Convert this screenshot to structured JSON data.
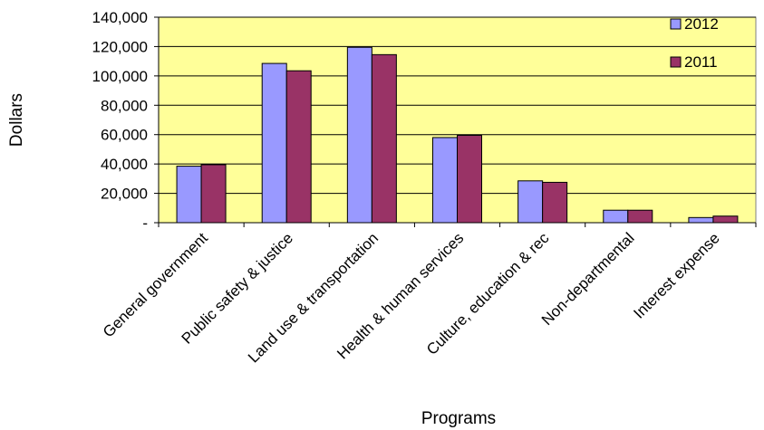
{
  "chart_data": {
    "type": "bar",
    "categories": [
      "General government",
      "Public safety & justice",
      "Land use & transportation",
      "Health & human services",
      "Culture, education & rec",
      "Non-departmental",
      "Interest expense"
    ],
    "series": [
      {
        "name": "2012",
        "color": "#9999ff",
        "values": [
          38500,
          108500,
          119500,
          58000,
          28500,
          8500,
          3500
        ]
      },
      {
        "name": "2011",
        "color": "#993366",
        "values": [
          39500,
          103500,
          114500,
          59500,
          27500,
          8500,
          4500
        ]
      }
    ],
    "xlabel": "Programs",
    "ylabel": "Dollars",
    "ylim": [
      0,
      140000
    ],
    "yticks": [
      0,
      20000,
      40000,
      60000,
      80000,
      100000,
      120000,
      140000
    ],
    "ytick_labels": [
      "-",
      "20,000",
      "40,000",
      "60,000",
      "80,000",
      "100,000",
      "120,000",
      "140,000"
    ],
    "plot_background": "#ffff99",
    "grid": "horizontal",
    "legend_position": "top-right"
  }
}
